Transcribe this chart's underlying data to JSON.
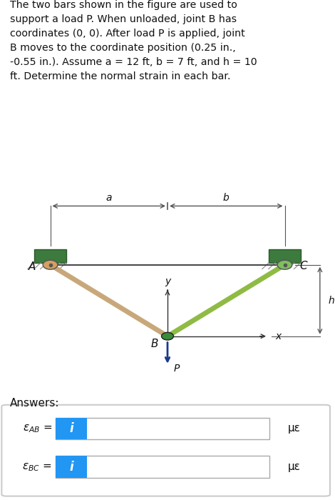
{
  "title_text": "The two bars shown in the figure are used to\nsupport a load P. When unloaded, joint B has\ncoordinates (0, 0). After load P is applied, joint\nB moves to the coordinate position (0.25 in.,\n-0.55 in.). Assume a = 12 ft, b = 7 ft, and h = 10\nft. Determine the normal strain in each bar.",
  "background_color": "#ffffff",
  "fig_width": 4.7,
  "fig_height": 7.0,
  "dpi": 100,
  "bar_AB_color": "#c8a87a",
  "bar_BC_color": "#8fbb44",
  "wall_color": "#3d7a3d",
  "wall_edge_color": "#2a5a2a",
  "hatch_color": "#888888",
  "pin_A_color": "#d4a060",
  "pin_C_color": "#7fbf5f",
  "pin_B_color": "#3a8a3a",
  "joint_line_color": "#888888",
  "axis_color": "#333333",
  "P_arrow_color": "#1a3a8a",
  "dim_color": "#555555",
  "text_color": "#111111",
  "a_label": "a",
  "b_label": "b",
  "h_label": "h",
  "x_label": "x",
  "y_label": "y",
  "B_label": "B",
  "A_label": "A",
  "C_label": "C",
  "P_label": "P",
  "answers_label": "Answers:",
  "box_color": "#2196F3",
  "mu_eps": "με"
}
